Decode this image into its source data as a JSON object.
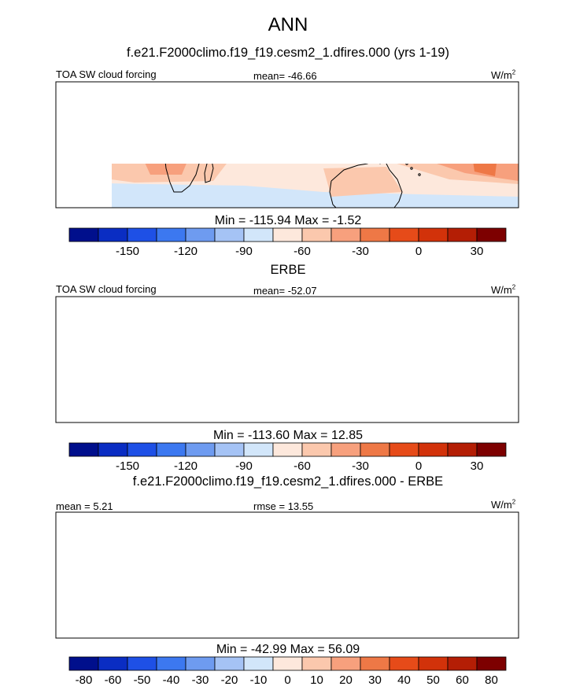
{
  "main_title": "ANN",
  "panels": [
    {
      "subtitle": "f.e21.F2000climo.f19_f19.cesm2_1.dfires.000 (yrs 1-19)",
      "left_label": "TOA SW cloud forcing",
      "center_label": "mean= -46.66",
      "units": "W/m",
      "units_sup": "2",
      "minmax": "Min = -115.94 Max =  -1.52"
    },
    {
      "subtitle": "ERBE",
      "left_label": "TOA SW cloud forcing",
      "center_label": "mean= -52.07",
      "units": "W/m",
      "units_sup": "2",
      "minmax": "Min = -113.60 Max =  12.85"
    },
    {
      "subtitle": "f.e21.F2000climo.f19_f19.cesm2_1.dfires.000 - ERBE",
      "left_label": "mean =   5.21",
      "center_label": "rmse =  13.55",
      "units": "W/m",
      "units_sup": "2",
      "minmax": "Min = -42.99 Max =  56.09"
    }
  ],
  "colorbars": {
    "field_ticks": [
      "-150",
      "-120",
      "-90",
      "-60",
      "-30",
      "0",
      "30"
    ],
    "diff_ticks": [
      "-80",
      "-60",
      "-50",
      "-40",
      "-30",
      "-20",
      "-10",
      "0",
      "10",
      "20",
      "30",
      "40",
      "50",
      "60",
      "80"
    ],
    "colors": [
      "#000f8c",
      "#0a2dc3",
      "#1e50e6",
      "#3c78f0",
      "#6e9bf0",
      "#a5c3f5",
      "#d2e6fa",
      "#fde8dc",
      "#fbc8ad",
      "#f7a07d",
      "#ee7846",
      "#e64b19",
      "#d2320a",
      "#b41e05",
      "#7d0000"
    ]
  },
  "chart_data": [
    {
      "type": "heatmap",
      "title": "f.e21.F2000climo.f19_f19.cesm2_1.dfires.000 (yrs 1-19)",
      "variable": "TOA SW cloud forcing",
      "units": "W/m2",
      "mean": -46.66,
      "min": -115.94,
      "max": -1.52,
      "levels": [
        -150,
        -135,
        -120,
        -105,
        -90,
        -75,
        -60,
        -45,
        -30,
        -15,
        0,
        15,
        30,
        45
      ],
      "xrange_lon": [
        -85,
        165
      ],
      "yrange_lat": [
        -38,
        38
      ]
    },
    {
      "type": "heatmap",
      "title": "ERBE",
      "variable": "TOA SW cloud forcing",
      "units": "W/m2",
      "mean": -52.07,
      "min": -113.6,
      "max": 12.85,
      "levels": [
        -150,
        -135,
        -120,
        -105,
        -90,
        -75,
        -60,
        -45,
        -30,
        -15,
        0,
        15,
        30,
        45
      ],
      "xrange_lon": [
        -85,
        165
      ],
      "yrange_lat": [
        -38,
        38
      ]
    },
    {
      "type": "heatmap",
      "title": "f.e21.F2000climo.f19_f19.cesm2_1.dfires.000 - ERBE",
      "units": "W/m2",
      "mean": 5.21,
      "rmse": 13.55,
      "min": -42.99,
      "max": 56.09,
      "levels": [
        -80,
        -60,
        -50,
        -40,
        -30,
        -20,
        -10,
        0,
        10,
        20,
        30,
        40,
        50,
        60,
        80
      ],
      "xrange_lon": [
        -85,
        165
      ],
      "yrange_lat": [
        -38,
        38
      ]
    }
  ]
}
